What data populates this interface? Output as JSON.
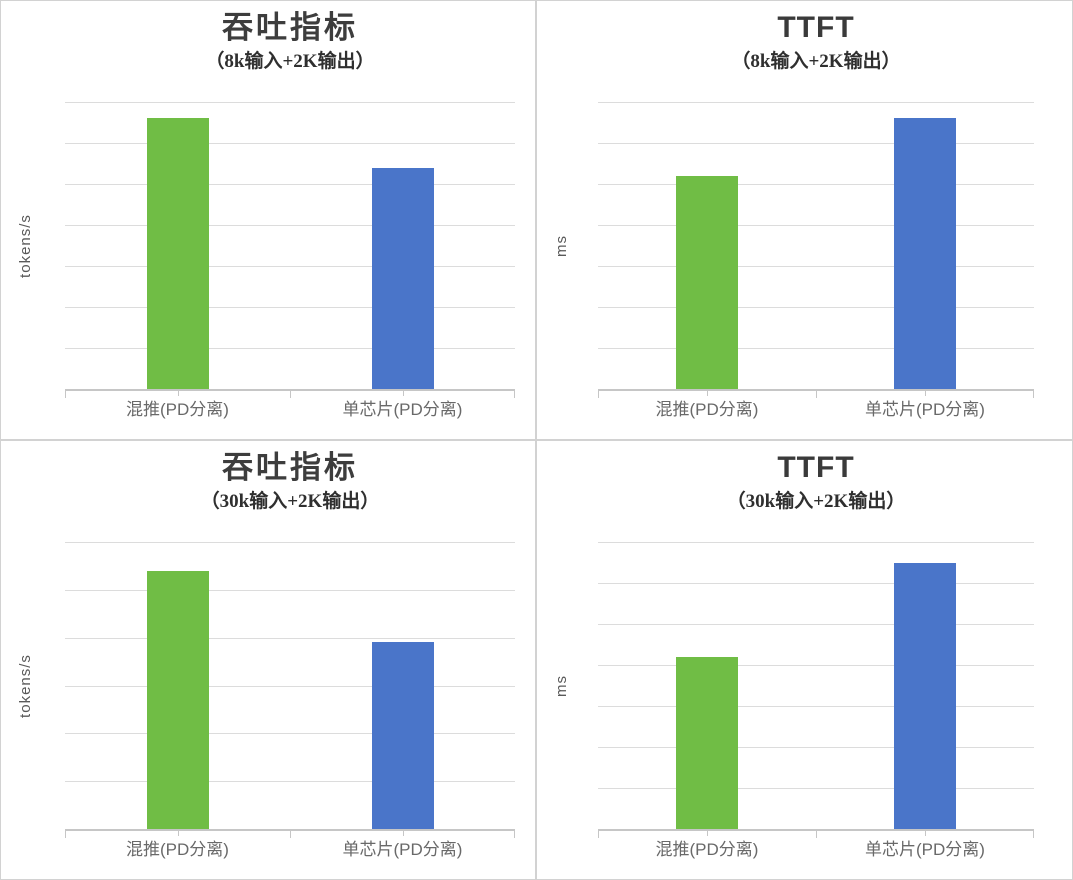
{
  "colors": {
    "bar_green": "#70BD45",
    "bar_blue": "#4A75C9",
    "gridline": "#DCDCDC",
    "axis_line": "#C6C6C6",
    "title_text": "#3D3D3D",
    "label_text": "#696969"
  },
  "chart_data": [
    {
      "type": "bar",
      "title": "吞吐指标",
      "subtitle": "（8k输入+2K输出）",
      "ylabel": "tokens/s",
      "xlabel": "",
      "categories": [
        "混推(PD分离)",
        "单芯片(PD分离)"
      ],
      "values": [
        6.6,
        5.4
      ],
      "bar_colors": [
        "#70BD45",
        "#4A75C9"
      ],
      "ylim": [
        0,
        7
      ],
      "gridline_count": 7,
      "ytick_labels": [],
      "grid": true,
      "legend": "none"
    },
    {
      "type": "bar",
      "title": "TTFT",
      "subtitle": "（8k输入+2K输出）",
      "ylabel": "ms",
      "xlabel": "",
      "categories": [
        "混推(PD分离)",
        "单芯片(PD分离)"
      ],
      "values": [
        5.2,
        6.6
      ],
      "bar_colors": [
        "#70BD45",
        "#4A75C9"
      ],
      "ylim": [
        0,
        7
      ],
      "gridline_count": 7,
      "ytick_labels": [],
      "grid": true,
      "legend": "none"
    },
    {
      "type": "bar",
      "title": "吞吐指标",
      "subtitle": "（30k输入+2K输出）",
      "ylabel": "tokens/s",
      "xlabel": "",
      "categories": [
        "混推(PD分离)",
        "单芯片(PD分离)"
      ],
      "values": [
        5.4,
        3.9
      ],
      "bar_colors": [
        "#70BD45",
        "#4A75C9"
      ],
      "ylim": [
        0,
        6
      ],
      "gridline_count": 6,
      "ytick_labels": [],
      "grid": true,
      "legend": "none"
    },
    {
      "type": "bar",
      "title": "TTFT",
      "subtitle": "（30k输入+2K输出）",
      "ylabel": "ms",
      "xlabel": "",
      "categories": [
        "混推(PD分离)",
        "单芯片(PD分离)"
      ],
      "values": [
        4.2,
        6.5
      ],
      "bar_colors": [
        "#70BD45",
        "#4A75C9"
      ],
      "ylim": [
        0,
        7
      ],
      "gridline_count": 7,
      "ytick_labels": [],
      "grid": true,
      "legend": "none"
    }
  ]
}
